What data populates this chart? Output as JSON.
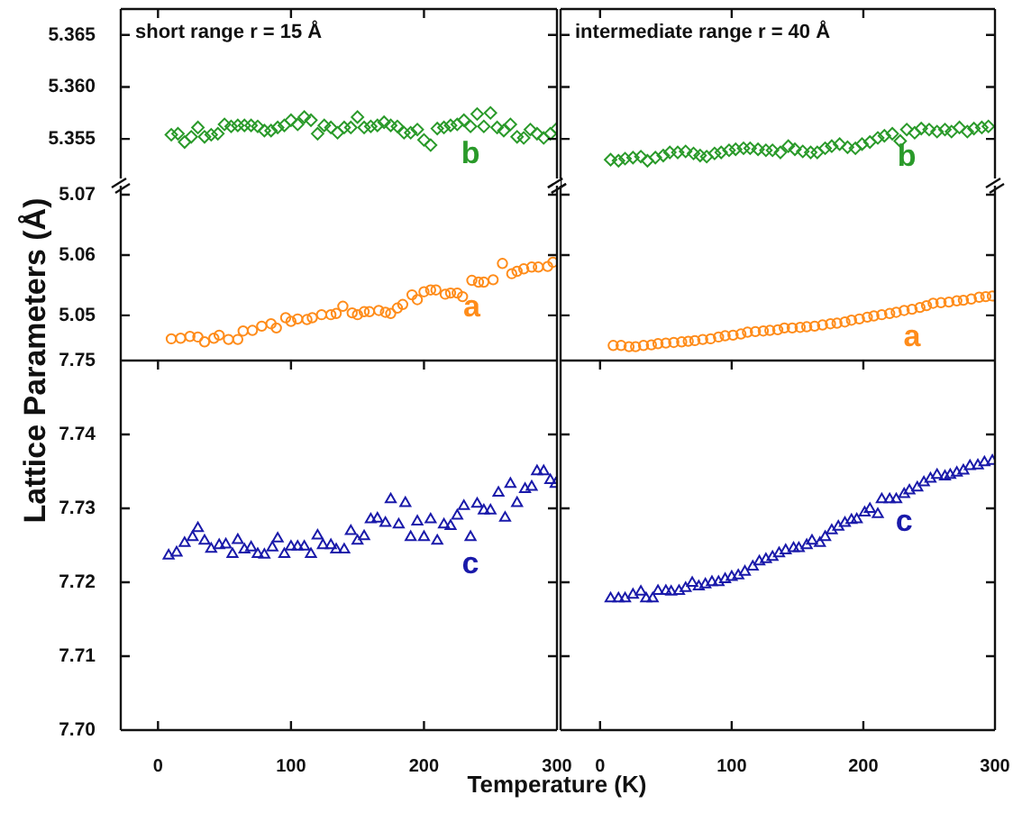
{
  "chart_data": [
    {
      "type": "scatter",
      "marker": "diamond",
      "tick_labels": "y",
      "xlim": [
        -28,
        300
      ],
      "xticks": [
        0,
        100,
        200,
        300
      ],
      "ylim": [
        5.3505,
        5.3675
      ],
      "yticks": [
        5.355,
        {
          "value": 5.36,
          "label": "5.360"
        },
        5.365
      ],
      "annotations": [
        "short range r = 15 Å"
      ],
      "x": [
        10,
        15,
        20,
        25,
        30,
        35,
        40,
        45,
        50,
        55,
        60,
        65,
        70,
        75,
        80,
        85,
        90,
        95,
        100,
        105,
        110,
        115,
        120,
        125,
        130,
        135,
        140,
        145,
        150,
        155,
        160,
        165,
        170,
        175,
        180,
        185,
        190,
        195,
        200,
        205,
        210,
        215,
        220,
        225,
        230,
        235,
        240,
        245,
        250,
        255,
        260,
        265,
        270,
        275,
        280,
        285,
        290,
        295,
        300
      ],
      "series": [
        {
          "name": "b",
          "color": "#2a9a2a",
          "values": [
            5.3554,
            5.3555,
            5.3547,
            5.3552,
            5.3561,
            5.3552,
            5.3554,
            5.3555,
            5.3564,
            5.3562,
            5.3563,
            5.3563,
            5.3563,
            5.3562,
            5.3558,
            5.3558,
            5.3561,
            5.3563,
            5.3568,
            5.3564,
            5.3571,
            5.3568,
            5.3555,
            5.3563,
            5.3561,
            5.3556,
            5.3561,
            5.3561,
            5.3571,
            5.3561,
            5.3562,
            5.3563,
            5.3566,
            5.3563,
            5.3562,
            5.3556,
            5.3556,
            5.3559,
            5.3549,
            5.3544,
            5.356,
            5.3561,
            5.3563,
            5.3564,
            5.3568,
            5.3562,
            5.3574,
            5.3562,
            5.3575,
            5.3561,
            5.3558,
            5.3564,
            5.3552,
            5.3551,
            5.3559,
            5.3555,
            5.3551,
            5.3555,
            5.356
          ]
        }
      ]
    },
    {
      "type": "scatter",
      "marker": "diamond",
      "tick_labels": false,
      "xlim": [
        -30,
        300
      ],
      "xticks": [
        0,
        100,
        200,
        300
      ],
      "ylim": [
        5.3505,
        5.3675
      ],
      "yticks": [
        5.355,
        5.36,
        5.365
      ],
      "annotations": [
        "intermediate range r = 40 Å"
      ],
      "x": [
        8,
        14,
        19,
        25,
        31,
        36,
        42,
        48,
        53,
        59,
        65,
        71,
        76,
        81,
        87,
        92,
        98,
        103,
        109,
        114,
        120,
        126,
        131,
        137,
        143,
        148,
        154,
        160,
        165,
        171,
        176,
        182,
        188,
        194,
        199,
        205,
        211,
        216,
        222,
        228,
        233,
        239,
        244,
        250,
        256,
        262,
        267,
        273,
        279,
        284,
        290,
        295
      ],
      "series": [
        {
          "name": "b",
          "color": "#2a9a2a",
          "values": [
            5.353,
            5.3529,
            5.3531,
            5.3532,
            5.3533,
            5.3529,
            5.3532,
            5.3534,
            5.3537,
            5.3537,
            5.3538,
            5.3536,
            5.3534,
            5.3533,
            5.3536,
            5.3537,
            5.3539,
            5.354,
            5.3541,
            5.3541,
            5.354,
            5.3539,
            5.3539,
            5.3537,
            5.3543,
            5.354,
            5.3538,
            5.3537,
            5.3537,
            5.3541,
            5.3543,
            5.3545,
            5.3542,
            5.3541,
            5.3545,
            5.3547,
            5.3551,
            5.3553,
            5.3555,
            5.3548,
            5.3559,
            5.3556,
            5.356,
            5.3559,
            5.3557,
            5.3559,
            5.3557,
            5.3561,
            5.3557,
            5.356,
            5.3561,
            5.3562
          ]
        }
      ]
    },
    {
      "type": "scatter",
      "marker": "circle",
      "tick_labels": "y",
      "ylabel": "Lattice Parameters (Å)",
      "xlim": [
        -28,
        300
      ],
      "xticks": [
        0,
        100,
        200,
        300
      ],
      "ylim": [
        5.0425,
        5.0715
      ],
      "yticks": [
        5.05,
        5.06,
        5.07
      ],
      "x": [
        10,
        17,
        24,
        30,
        35,
        42,
        46,
        53,
        60,
        64,
        71,
        78,
        85,
        89,
        96,
        100,
        105,
        112,
        116,
        123,
        130,
        134,
        139,
        146,
        150,
        155,
        159,
        166,
        171,
        175,
        180,
        184,
        191,
        195,
        200,
        205,
        209,
        216,
        220,
        225,
        229,
        236,
        241,
        245,
        252,
        259,
        266,
        270,
        275,
        281,
        286,
        293,
        297
      ],
      "series": [
        {
          "name": "a",
          "color": "#ff8c1a",
          "values": [
            5.0461,
            5.0462,
            5.0465,
            5.0464,
            5.0456,
            5.0462,
            5.0467,
            5.046,
            5.046,
            5.0474,
            5.0475,
            5.0482,
            5.0486,
            5.0479,
            5.0496,
            5.049,
            5.0494,
            5.0493,
            5.0496,
            5.0501,
            5.0501,
            5.0503,
            5.0515,
            5.0504,
            5.0501,
            5.0506,
            5.0506,
            5.0508,
            5.0505,
            5.0503,
            5.0512,
            5.0518,
            5.0534,
            5.0526,
            5.0539,
            5.0542,
            5.0542,
            5.0535,
            5.0537,
            5.0537,
            5.0531,
            5.0558,
            5.0555,
            5.0555,
            5.0559,
            5.0586,
            5.0569,
            5.0573,
            5.0577,
            5.058,
            5.058,
            5.0581,
            5.0588
          ]
        }
      ]
    },
    {
      "type": "scatter",
      "marker": "circle",
      "tick_labels": false,
      "xlim": [
        -30,
        300
      ],
      "xticks": [
        0,
        100,
        200,
        300
      ],
      "ylim": [
        5.0425,
        5.0715
      ],
      "yticks": [
        5.05,
        5.06,
        5.07
      ],
      "x": [
        10,
        16,
        22,
        27,
        33,
        39,
        44,
        50,
        56,
        62,
        67,
        72,
        78,
        84,
        90,
        95,
        101,
        107,
        112,
        118,
        124,
        129,
        135,
        140,
        146,
        152,
        157,
        163,
        169,
        175,
        180,
        186,
        191,
        197,
        203,
        208,
        214,
        220,
        225,
        231,
        237,
        243,
        248,
        253,
        259,
        265,
        271,
        276,
        282,
        288,
        293,
        298
      ],
      "series": [
        {
          "name": "a",
          "color": "#ff8c1a",
          "values": [
            5.045,
            5.045,
            5.0448,
            5.0448,
            5.045,
            5.0451,
            5.0453,
            5.0454,
            5.0455,
            5.0456,
            5.0457,
            5.0458,
            5.046,
            5.0461,
            5.0464,
            5.0466,
            5.0467,
            5.0469,
            5.0472,
            5.0473,
            5.0474,
            5.0475,
            5.0476,
            5.0479,
            5.0479,
            5.048,
            5.0481,
            5.0482,
            5.0484,
            5.0486,
            5.0487,
            5.0489,
            5.0492,
            5.0494,
            5.0497,
            5.0499,
            5.0501,
            5.0503,
            5.0505,
            5.0508,
            5.051,
            5.0513,
            5.0516,
            5.052,
            5.0521,
            5.0522,
            5.0524,
            5.0525,
            5.0527,
            5.053,
            5.0531,
            5.0532
          ]
        }
      ]
    },
    {
      "type": "scatter",
      "marker": "triangle",
      "xlabel": "Temperature (K)",
      "xlim": [
        -28,
        300
      ],
      "xticks": [
        0,
        100,
        200,
        300
      ],
      "ylim": [
        7.7,
        7.75
      ],
      "yticks": [
        {
          "value": 7.7,
          "label": "7.70"
        },
        7.71,
        7.72,
        7.73,
        7.74,
        7.75
      ],
      "x": [
        8,
        14,
        20,
        26,
        30,
        35,
        40,
        46,
        51,
        56,
        60,
        65,
        70,
        75,
        80,
        86,
        90,
        95,
        100,
        105,
        110,
        115,
        120,
        124,
        130,
        134,
        140,
        145,
        150,
        155,
        160,
        165,
        171,
        175,
        181,
        186,
        190,
        195,
        200,
        205,
        210,
        215,
        220,
        225,
        230,
        235,
        240,
        245,
        250,
        256,
        261,
        265,
        270,
        276,
        281,
        285,
        290,
        295,
        299
      ],
      "series": [
        {
          "name": "c",
          "color": "#1a1aaa",
          "values": [
            7.7236,
            7.724,
            7.7253,
            7.7261,
            7.7273,
            7.7256,
            7.7245,
            7.725,
            7.7251,
            7.7238,
            7.7257,
            7.7244,
            7.7247,
            7.7238,
            7.7237,
            7.7247,
            7.7259,
            7.7238,
            7.7248,
            7.7248,
            7.7248,
            7.7238,
            7.7263,
            7.725,
            7.725,
            7.7244,
            7.7244,
            7.7269,
            7.7256,
            7.7262,
            7.7285,
            7.7286,
            7.728,
            7.7312,
            7.7278,
            7.7307,
            7.7261,
            7.7282,
            7.7261,
            7.7285,
            7.7256,
            7.7278,
            7.7276,
            7.729,
            7.7303,
            7.7261,
            7.7306,
            7.7297,
            7.7297,
            7.7321,
            7.7287,
            7.7333,
            7.7307,
            7.7326,
            7.7329,
            7.735,
            7.735,
            7.7338,
            7.7333
          ]
        }
      ]
    },
    {
      "type": "scatter",
      "marker": "triangle",
      "tick_labels": "x",
      "xlim": [
        -30,
        300
      ],
      "xticks": [
        0,
        100,
        200,
        300
      ],
      "ylim": [
        7.7,
        7.75
      ],
      "yticks": [
        7.7,
        7.71,
        7.72,
        7.73,
        7.74,
        7.75
      ],
      "x": [
        8,
        14,
        19,
        25,
        31,
        35,
        40,
        44,
        50,
        54,
        60,
        65,
        70,
        75,
        80,
        85,
        90,
        95,
        100,
        105,
        110,
        116,
        121,
        126,
        131,
        136,
        141,
        147,
        151,
        157,
        161,
        167,
        171,
        176,
        181,
        186,
        191,
        195,
        201,
        205,
        211,
        214,
        220,
        225,
        231,
        235,
        241,
        246,
        251,
        256,
        262,
        266,
        271,
        276,
        281,
        287,
        292,
        298
      ],
      "series": [
        {
          "name": "c",
          "color": "#1a1aaa",
          "values": [
            7.7178,
            7.7178,
            7.7178,
            7.7183,
            7.7187,
            7.7178,
            7.7178,
            7.7188,
            7.7188,
            7.7187,
            7.7188,
            7.7192,
            7.7199,
            7.7194,
            7.7197,
            7.72,
            7.72,
            7.7204,
            7.7207,
            7.7209,
            7.7214,
            7.7221,
            7.7228,
            7.7231,
            7.7234,
            7.7239,
            7.7243,
            7.7246,
            7.7246,
            7.725,
            7.7256,
            7.7253,
            7.7261,
            7.727,
            7.7275,
            7.728,
            7.7284,
            7.7285,
            7.7294,
            7.7299,
            7.7292,
            7.7312,
            7.7312,
            7.7312,
            7.7319,
            7.7324,
            7.7328,
            7.7335,
            7.734,
            7.7345,
            7.7343,
            7.7345,
            7.7348,
            7.7351,
            7.7357,
            7.7358,
            7.7362,
            7.7364
          ]
        }
      ]
    }
  ]
}
